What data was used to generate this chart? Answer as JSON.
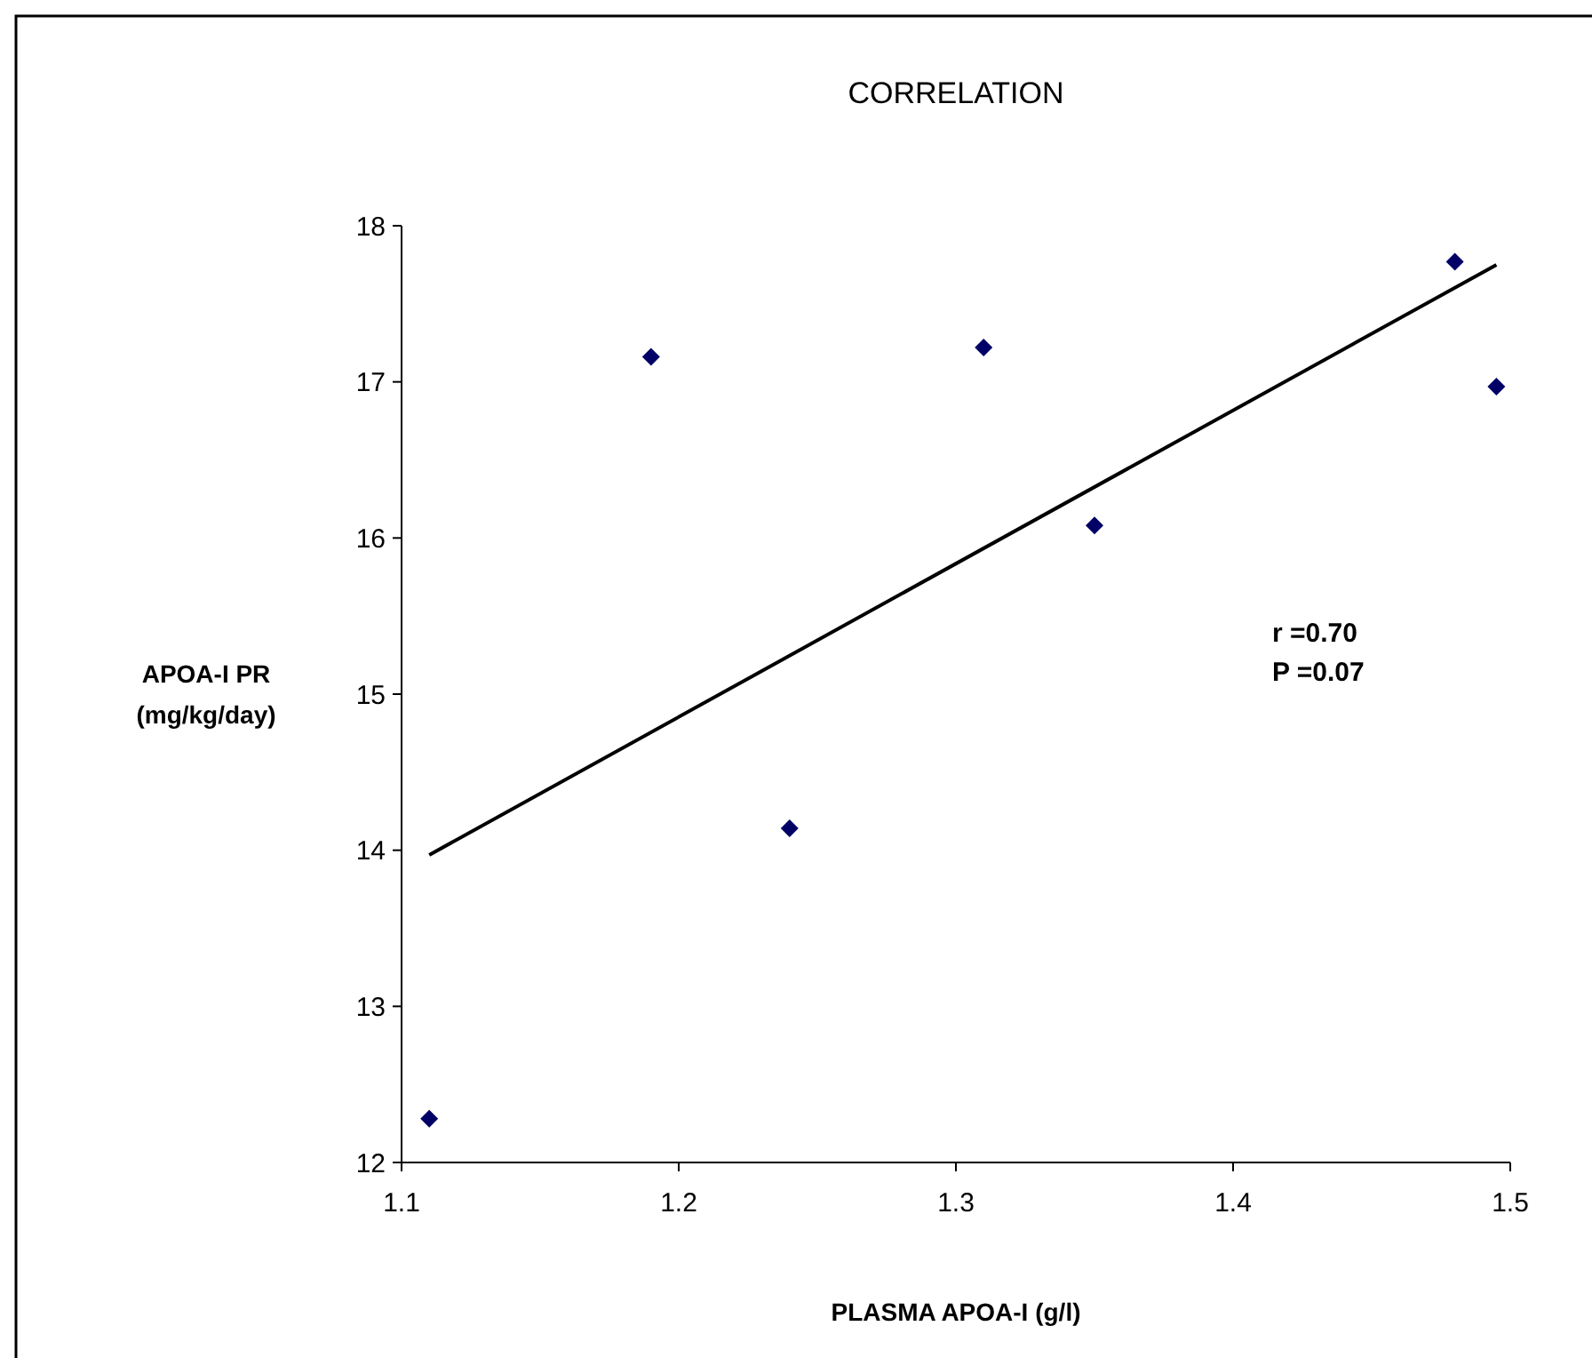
{
  "chart_data": {
    "type": "scatter",
    "title": "CORRELATION",
    "xlabel": "PLASMA APOA-I (g/l)",
    "ylabel": "APOA-I PR\n(mg/kg/day)",
    "annotations": [
      "r =0.70",
      "P =0.07"
    ],
    "x": [
      1.11,
      1.19,
      1.24,
      1.31,
      1.35,
      1.48,
      1.495
    ],
    "series": [
      {
        "color": "#000066",
        "marker": "diamond",
        "values": [
          12.28,
          17.16,
          14.14,
          17.22,
          16.08,
          17.77,
          16.97
        ]
      },
      {
        "type": "line",
        "color": "#000000",
        "marker": "none",
        "line_style": "solid",
        "x": [
          1.11,
          1.495
        ],
        "values": [
          13.97,
          17.75
        ]
      }
    ],
    "xlim": [
      1.1,
      1.5
    ],
    "xticks": [
      1.1,
      1.2,
      1.3,
      1.4,
      1.5
    ],
    "ylim": [
      12,
      18
    ],
    "yticks": [
      12,
      13,
      14,
      15,
      16,
      17,
      18
    ],
    "grid": false
  }
}
